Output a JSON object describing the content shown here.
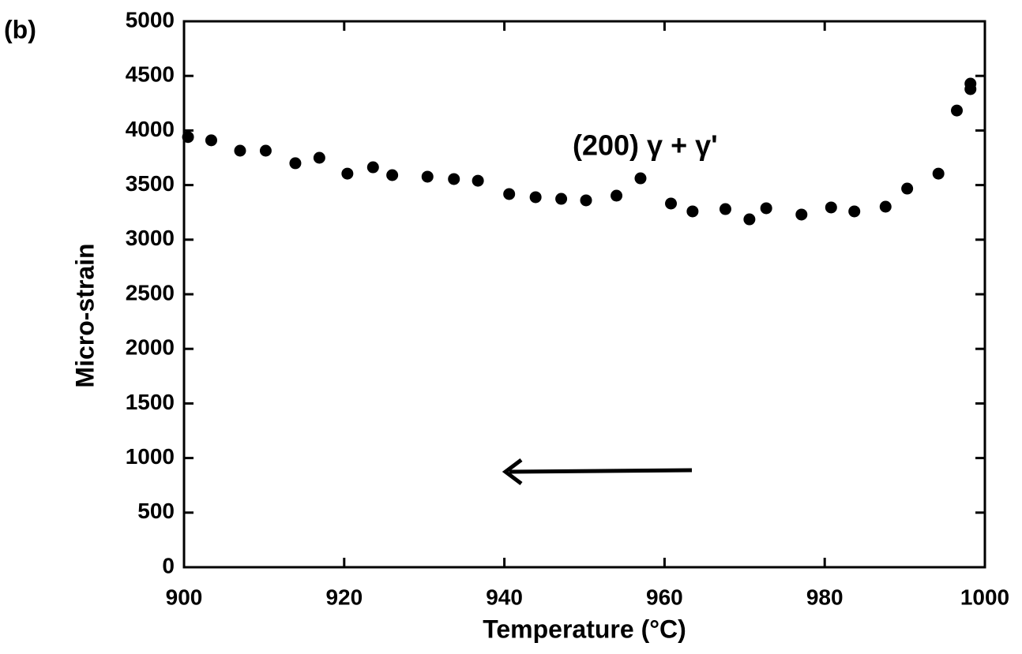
{
  "panel_label": "(b)",
  "chart_data": {
    "type": "scatter",
    "xlabel": "Temperature (°C)",
    "ylabel": "Micro-strain",
    "annotation": "(200) γ + γ'",
    "color": "#000000",
    "xlim": [
      900,
      1000
    ],
    "xticks": [
      900,
      920,
      940,
      960,
      980,
      1000
    ],
    "ylim": [
      0,
      5000
    ],
    "yticks": [
      0,
      500,
      1000,
      1500,
      2000,
      2500,
      3000,
      3500,
      4000,
      4500,
      5000
    ],
    "x": [
      900.5,
      903.4,
      907.0,
      910.2,
      913.9,
      916.9,
      920.4,
      923.6,
      926.0,
      930.4,
      933.7,
      936.7,
      940.6,
      943.9,
      947.1,
      950.2,
      954.0,
      957.0,
      960.8,
      963.5,
      967.6,
      970.6,
      972.7,
      977.1,
      980.8,
      983.7,
      987.6,
      990.3,
      994.2,
      996.5,
      998.2,
      998.2
    ],
    "values": [
      3940,
      3910,
      3815,
      3815,
      3700,
      3750,
      3605,
      3663,
      3591,
      3577,
      3555,
      3540,
      3418,
      3389,
      3374,
      3360,
      3403,
      3562,
      3331,
      3259,
      3280,
      3186,
      3288,
      3230,
      3295,
      3259,
      3302,
      3468,
      3605,
      4183,
      4429,
      4379
    ]
  }
}
